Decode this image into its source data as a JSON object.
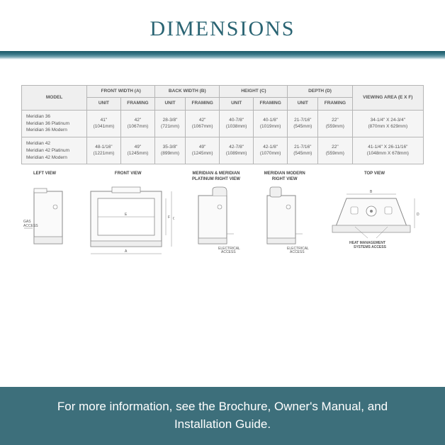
{
  "title": {
    "text": "DIMENSIONS",
    "color": "#2a6473",
    "fontsize": 30
  },
  "accent_gradient_from": "#1a5866",
  "accent_gradient_to": "#ffffff",
  "table": {
    "header_top": [
      "MODEL",
      "FRONT WIDTH (A)",
      "BACK WIDTH (B)",
      "HEIGHT (C)",
      "DEPTH (D)",
      "VIEWING AREA (E X F)"
    ],
    "header_sub": [
      "UNIT",
      "FRAMING",
      "UNIT",
      "FRAMING",
      "UNIT",
      "FRAMING",
      "UNIT",
      "FRAMING"
    ],
    "rows": [
      {
        "model": "Meridian 36\nMeridian 36 Platinum\nMeridian 36 Modern",
        "cells": [
          "41\"\n(1041mm)",
          "42\"\n(1067mm)",
          "28-3/8\"\n(721mm)",
          "42\"\n(1067mm)",
          "40-7/8\"\n(1038mm)",
          "40-1/8\"\n(1019mm)",
          "21-7/16\"\n(545mm)",
          "22\"\n(559mm)",
          "34-1/4\" X 24-3/4\"\n(870mm X 629mm)"
        ]
      },
      {
        "model": "Meridian 42\nMeridian 42 Platinum\nMeridian 42 Modern",
        "cells": [
          "48-1/16\"\n(1221mm)",
          "49\"\n(1245mm)",
          "35-3/8\"\n(899mm)",
          "49\"\n(1245mm)",
          "42-7/8\"\n(1089mm)",
          "42-1/8\"\n(1070mm)",
          "21-7/16\"\n(545mm)",
          "22\"\n(559mm)",
          "41-1/4\" X 26-11/16\"\n(1048mm X 678mm)"
        ]
      }
    ]
  },
  "diagrams": {
    "left_view": {
      "label": "LEFT VIEW",
      "access_text": "GAS\nACCESS"
    },
    "front_view": {
      "label": "FRONT VIEW",
      "dim_e": "E",
      "dim_f": "F",
      "dim_a": "A",
      "dim_c": "C"
    },
    "right_view_std": {
      "label": "MERIDIAN &\nMERIDIAN PLATINUM\nRIGHT VIEW",
      "access_text": "ELECTRICAL\nACCESS"
    },
    "right_view_modern": {
      "label": "MERIDIAN MODERN\nRIGHT VIEW",
      "access_text": "ELECTRICAL\nACCESS"
    },
    "top_view": {
      "label": "TOP VIEW",
      "dim_b": "B",
      "dim_d": "D",
      "access_text": "HEAT MANAGEMENT\nSYSTEMS ACCESS"
    }
  },
  "footer": {
    "text": "For more information, see the Brochure, Owner's Manual, and Installation Guide.",
    "bg_color": "#3d6f7b",
    "text_color": "#ffffff",
    "fontsize": 17
  }
}
